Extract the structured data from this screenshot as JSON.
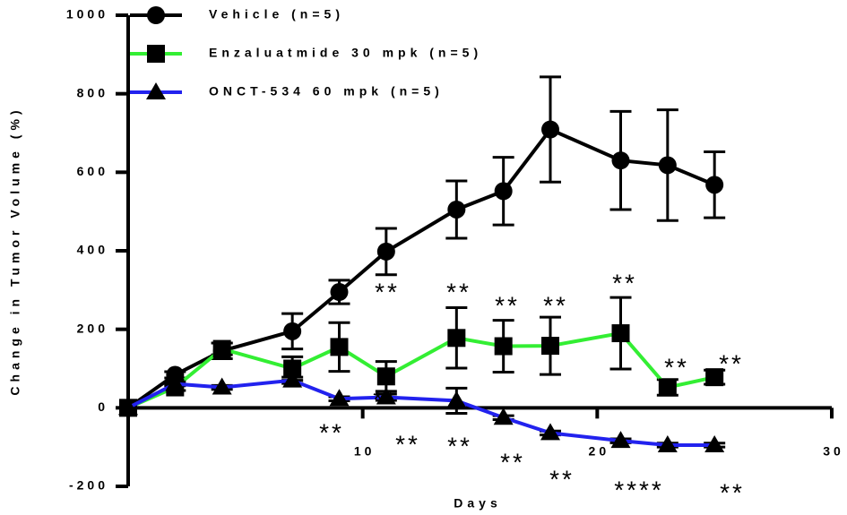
{
  "chart_data": {
    "type": "line",
    "x_label": "Days",
    "y_label": "Change in Tumor Volume (%)",
    "xlim": [
      0,
      30
    ],
    "ylim": [
      -200,
      1000
    ],
    "xticks": [
      10,
      20,
      30
    ],
    "yticks": [
      -200,
      0,
      200,
      400,
      600,
      800,
      1000
    ],
    "legend": "top-left",
    "x": [
      0,
      2,
      4,
      7,
      9,
      11,
      14,
      16,
      18,
      21,
      23,
      25
    ],
    "series": [
      {
        "name": "Vehicle (n=5)",
        "color": "#000000",
        "marker": "circle",
        "values": [
          0,
          84,
          145,
          195,
          295,
          398,
          505,
          552,
          709,
          630,
          618,
          568
        ],
        "errors": [
          0,
          8,
          20,
          45,
          30,
          59,
          73,
          86,
          134,
          125,
          141,
          84
        ]
      },
      {
        "name": "Enzaluatmide 30 mpk (n=5)",
        "color": "#33ee33",
        "marker": "square",
        "values": [
          0,
          52,
          150,
          100,
          155,
          80,
          178,
          157,
          158,
          190,
          52,
          78
        ],
        "errors": [
          0,
          8,
          15,
          30,
          62,
          38,
          77,
          66,
          73,
          91,
          20,
          18
        ]
      },
      {
        "name": "ONCT-534 60 mpk (n=5)",
        "color": "#2222ee",
        "marker": "triangle",
        "values": [
          0,
          61,
          52,
          70,
          23,
          27,
          18,
          -25,
          -64,
          -84,
          -95,
          -95
        ],
        "errors": [
          0,
          5,
          5,
          8,
          5,
          8,
          32,
          5,
          5,
          5,
          5,
          5
        ]
      }
    ],
    "annotations": [
      "**",
      "**",
      "**",
      "**",
      "**",
      "**",
      "**",
      "**",
      "**",
      "**",
      "**",
      "**",
      "**",
      "****",
      "**"
    ]
  }
}
